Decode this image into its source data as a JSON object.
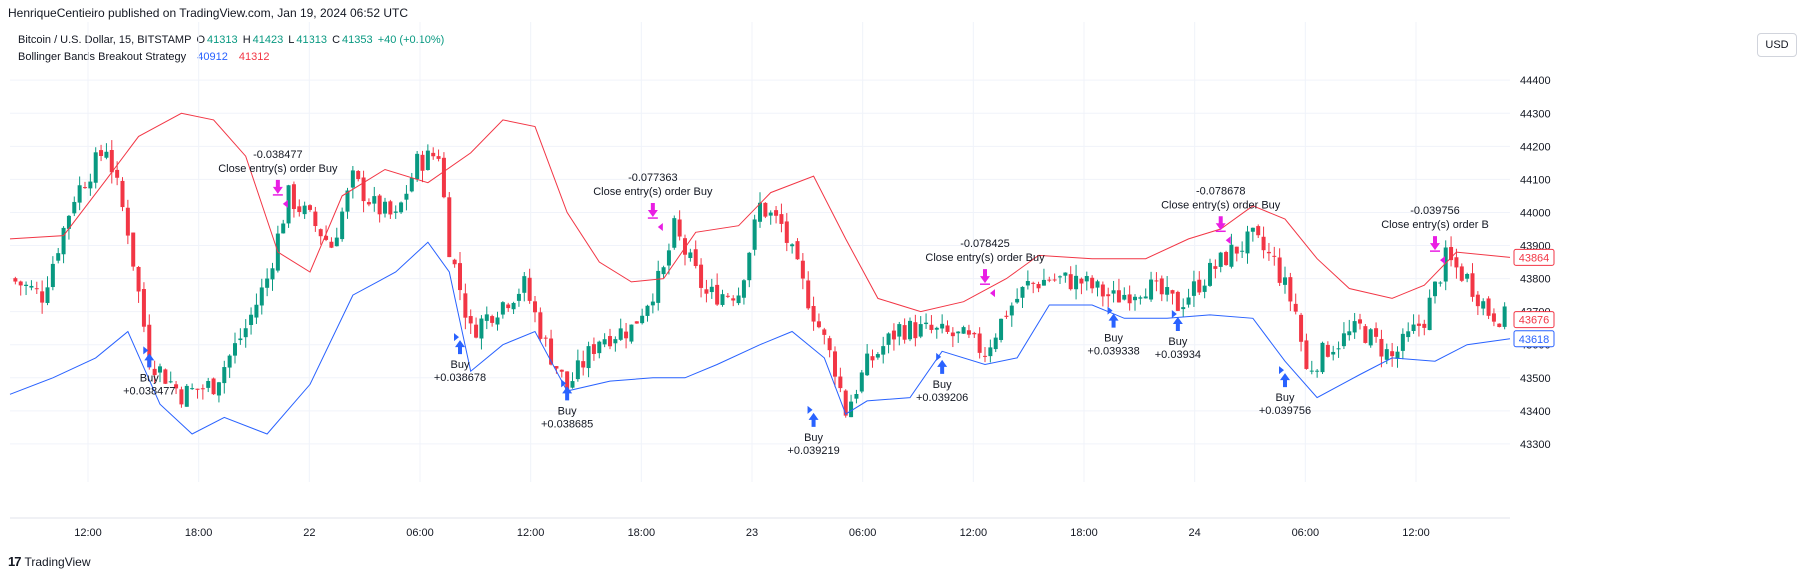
{
  "header": {
    "publisher": "HenriqueCentieiro published on TradingView.com, Jan 19, 2024 06:52 UTC",
    "symbol": "Bitcoin / U.S. Dollar, 15, BITSTAMP",
    "o_label": "O",
    "o_value": "41313",
    "h_label": "H",
    "h_value": "41423",
    "l_label": "L",
    "l_value": "41313",
    "c_label": "C",
    "c_value": "41353",
    "change": "+40 (+0.10%)",
    "indicator_name": "Bollinger Bands Breakout Strategy",
    "indicator_value_1": "40912",
    "indicator_value_2": "41312"
  },
  "currency_button": "USD",
  "footer": {
    "logo_glyph": "17",
    "brand": "TradingView"
  },
  "colors": {
    "up": "#089981",
    "down": "#f23645",
    "upper_band": "#f23645",
    "lower_band": "#2962ff",
    "buy_marker": "#2962ff",
    "close_marker": "#e91ee3",
    "grid": "#f0f3fa"
  },
  "chart_data": {
    "type": "candlestick",
    "y_ticks": [
      43300,
      43400,
      43500,
      43600,
      43700,
      43800,
      43900,
      44000,
      44100,
      44200,
      44300,
      44400
    ],
    "ylim": [
      43215,
      44455
    ],
    "x_ticks": [
      "12:00",
      "18:00",
      "22",
      "06:00",
      "12:00",
      "18:00",
      "23",
      "06:00",
      "12:00",
      "18:00",
      "24",
      "06:00",
      "12:00"
    ],
    "price_labels": [
      {
        "value": "43864",
        "series": "upper_band"
      },
      {
        "value": "43676",
        "series": "middle"
      },
      {
        "value": "43618",
        "series": "lower_band"
      }
    ],
    "upper_band": [
      {
        "t": 0,
        "v": 43920
      },
      {
        "t": 5,
        "v": 43930
      },
      {
        "t": 9,
        "v": 44100
      },
      {
        "t": 12,
        "v": 44230
      },
      {
        "t": 16,
        "v": 44300
      },
      {
        "t": 19,
        "v": 44280
      },
      {
        "t": 22,
        "v": 44170
      },
      {
        "t": 25,
        "v": 43880
      },
      {
        "t": 28,
        "v": 43820
      },
      {
        "t": 31,
        "v": 44050
      },
      {
        "t": 35,
        "v": 44130
      },
      {
        "t": 39,
        "v": 44090
      },
      {
        "t": 43,
        "v": 44180
      },
      {
        "t": 46,
        "v": 44280
      },
      {
        "t": 49,
        "v": 44260
      },
      {
        "t": 52,
        "v": 44000
      },
      {
        "t": 55,
        "v": 43850
      },
      {
        "t": 58,
        "v": 43790
      },
      {
        "t": 61,
        "v": 43800
      },
      {
        "t": 64,
        "v": 43940
      },
      {
        "t": 68,
        "v": 43960
      },
      {
        "t": 71,
        "v": 44060
      },
      {
        "t": 75,
        "v": 44110
      },
      {
        "t": 78,
        "v": 43920
      },
      {
        "t": 81,
        "v": 43740
      },
      {
        "t": 85,
        "v": 43700
      },
      {
        "t": 89,
        "v": 43730
      },
      {
        "t": 93,
        "v": 43800
      },
      {
        "t": 96,
        "v": 43870
      },
      {
        "t": 101,
        "v": 43860
      },
      {
        "t": 106,
        "v": 43860
      },
      {
        "t": 110,
        "v": 43920
      },
      {
        "t": 113,
        "v": 43950
      },
      {
        "t": 116,
        "v": 44020
      },
      {
        "t": 119,
        "v": 43980
      },
      {
        "t": 122,
        "v": 43860
      },
      {
        "t": 125,
        "v": 43770
      },
      {
        "t": 129,
        "v": 43740
      },
      {
        "t": 132,
        "v": 43780
      },
      {
        "t": 135,
        "v": 43880
      },
      {
        "t": 140,
        "v": 43864
      }
    ],
    "lower_band": [
      {
        "t": 0,
        "v": 43450
      },
      {
        "t": 4,
        "v": 43500
      },
      {
        "t": 8,
        "v": 43560
      },
      {
        "t": 11,
        "v": 43640
      },
      {
        "t": 14,
        "v": 43420
      },
      {
        "t": 17,
        "v": 43330
      },
      {
        "t": 20,
        "v": 43380
      },
      {
        "t": 24,
        "v": 43330
      },
      {
        "t": 28,
        "v": 43480
      },
      {
        "t": 32,
        "v": 43750
      },
      {
        "t": 36,
        "v": 43820
      },
      {
        "t": 39,
        "v": 43910
      },
      {
        "t": 41,
        "v": 43820
      },
      {
        "t": 43,
        "v": 43520
      },
      {
        "t": 46,
        "v": 43600
      },
      {
        "t": 49,
        "v": 43640
      },
      {
        "t": 52,
        "v": 43460
      },
      {
        "t": 56,
        "v": 43490
      },
      {
        "t": 60,
        "v": 43500
      },
      {
        "t": 63,
        "v": 43500
      },
      {
        "t": 66,
        "v": 43540
      },
      {
        "t": 70,
        "v": 43600
      },
      {
        "t": 73,
        "v": 43640
      },
      {
        "t": 76,
        "v": 43560
      },
      {
        "t": 78,
        "v": 43390
      },
      {
        "t": 80,
        "v": 43430
      },
      {
        "t": 84,
        "v": 43440
      },
      {
        "t": 87,
        "v": 43580
      },
      {
        "t": 91,
        "v": 43540
      },
      {
        "t": 94,
        "v": 43560
      },
      {
        "t": 97,
        "v": 43720
      },
      {
        "t": 101,
        "v": 43720
      },
      {
        "t": 104,
        "v": 43680
      },
      {
        "t": 108,
        "v": 43680
      },
      {
        "t": 112,
        "v": 43690
      },
      {
        "t": 116,
        "v": 43680
      },
      {
        "t": 119,
        "v": 43550
      },
      {
        "t": 122,
        "v": 43440
      },
      {
        "t": 126,
        "v": 43510
      },
      {
        "t": 129,
        "v": 43560
      },
      {
        "t": 133,
        "v": 43550
      },
      {
        "t": 136,
        "v": 43600
      },
      {
        "t": 140,
        "v": 43618
      }
    ],
    "close_path": [
      {
        "t": 0,
        "v": 43800
      },
      {
        "t": 3,
        "v": 43750
      },
      {
        "t": 6,
        "v": 44050
      },
      {
        "t": 9,
        "v": 44200
      },
      {
        "t": 11,
        "v": 43950
      },
      {
        "t": 13,
        "v": 43560
      },
      {
        "t": 16,
        "v": 43450
      },
      {
        "t": 19,
        "v": 43480
      },
      {
        "t": 22,
        "v": 43650
      },
      {
        "t": 24,
        "v": 43800
      },
      {
        "t": 26,
        "v": 44050
      },
      {
        "t": 28,
        "v": 43980
      },
      {
        "t": 30,
        "v": 43900
      },
      {
        "t": 32,
        "v": 44100
      },
      {
        "t": 34,
        "v": 44020
      },
      {
        "t": 36,
        "v": 43980
      },
      {
        "t": 38,
        "v": 44150
      },
      {
        "t": 40,
        "v": 44180
      },
      {
        "t": 41,
        "v": 43900
      },
      {
        "t": 43,
        "v": 43640
      },
      {
        "t": 45,
        "v": 43700
      },
      {
        "t": 48,
        "v": 43780
      },
      {
        "t": 50,
        "v": 43600
      },
      {
        "t": 52,
        "v": 43470
      },
      {
        "t": 55,
        "v": 43620
      },
      {
        "t": 58,
        "v": 43650
      },
      {
        "t": 61,
        "v": 43820
      },
      {
        "t": 62,
        "v": 43950
      },
      {
        "t": 63,
        "v": 43880
      },
      {
        "t": 65,
        "v": 43750
      },
      {
        "t": 68,
        "v": 43760
      },
      {
        "t": 70,
        "v": 44020
      },
      {
        "t": 72,
        "v": 43960
      },
      {
        "t": 74,
        "v": 43780
      },
      {
        "t": 77,
        "v": 43530
      },
      {
        "t": 78,
        "v": 43400
      },
      {
        "t": 80,
        "v": 43540
      },
      {
        "t": 83,
        "v": 43650
      },
      {
        "t": 86,
        "v": 43640
      },
      {
        "t": 89,
        "v": 43620
      },
      {
        "t": 91,
        "v": 43580
      },
      {
        "t": 93,
        "v": 43700
      },
      {
        "t": 95,
        "v": 43780
      },
      {
        "t": 97,
        "v": 43800
      },
      {
        "t": 100,
        "v": 43790
      },
      {
        "t": 103,
        "v": 43740
      },
      {
        "t": 106,
        "v": 43780
      },
      {
        "t": 109,
        "v": 43720
      },
      {
        "t": 112,
        "v": 43820
      },
      {
        "t": 114,
        "v": 43880
      },
      {
        "t": 116,
        "v": 43920
      },
      {
        "t": 118,
        "v": 43850
      },
      {
        "t": 120,
        "v": 43700
      },
      {
        "t": 121,
        "v": 43520
      },
      {
        "t": 123,
        "v": 43590
      },
      {
        "t": 126,
        "v": 43650
      },
      {
        "t": 129,
        "v": 43560
      },
      {
        "t": 132,
        "v": 43680
      },
      {
        "t": 134,
        "v": 43860
      },
      {
        "t": 136,
        "v": 43800
      },
      {
        "t": 138,
        "v": 43700
      },
      {
        "t": 140,
        "v": 43676
      }
    ],
    "trades": [
      {
        "kind": "buy",
        "t": 13,
        "v": 43580,
        "label": "Buy",
        "amount": "+0.038477"
      },
      {
        "kind": "close",
        "t": 25,
        "v": 44050,
        "label": "Close entry(s) order Buy",
        "amount": "-0.038477"
      },
      {
        "kind": "buy",
        "t": 42,
        "v": 43620,
        "label": "Buy",
        "amount": "+0.038678"
      },
      {
        "kind": "buy",
        "t": 52,
        "v": 43480,
        "label": "Buy",
        "amount": "+0.038685"
      },
      {
        "kind": "close",
        "t": 60,
        "v": 43980,
        "label": "Close entry(s) order Buy",
        "amount": "-0.077363"
      },
      {
        "kind": "buy",
        "t": 75,
        "v": 43400,
        "label": "Buy",
        "amount": "+0.039219"
      },
      {
        "kind": "buy",
        "t": 87,
        "v": 43560,
        "label": "Buy",
        "amount": "+0.039206"
      },
      {
        "kind": "close",
        "t": 91,
        "v": 43780,
        "label": "Close entry(s) order Buy",
        "amount": "-0.078425"
      },
      {
        "kind": "buy",
        "t": 103,
        "v": 43700,
        "label": "Buy",
        "amount": "+0.039338"
      },
      {
        "kind": "buy",
        "t": 109,
        "v": 43690,
        "label": "Buy",
        "amount": "+0.03934"
      },
      {
        "kind": "close",
        "t": 113,
        "v": 43940,
        "label": "Close entry(s) order Buy",
        "amount": "-0.078678"
      },
      {
        "kind": "buy",
        "t": 119,
        "v": 43520,
        "label": "Buy",
        "amount": "+0.039756"
      },
      {
        "kind": "close",
        "t": 133,
        "v": 43880,
        "label": "Close entry(s) order B",
        "amount": "-0.039756"
      }
    ]
  }
}
